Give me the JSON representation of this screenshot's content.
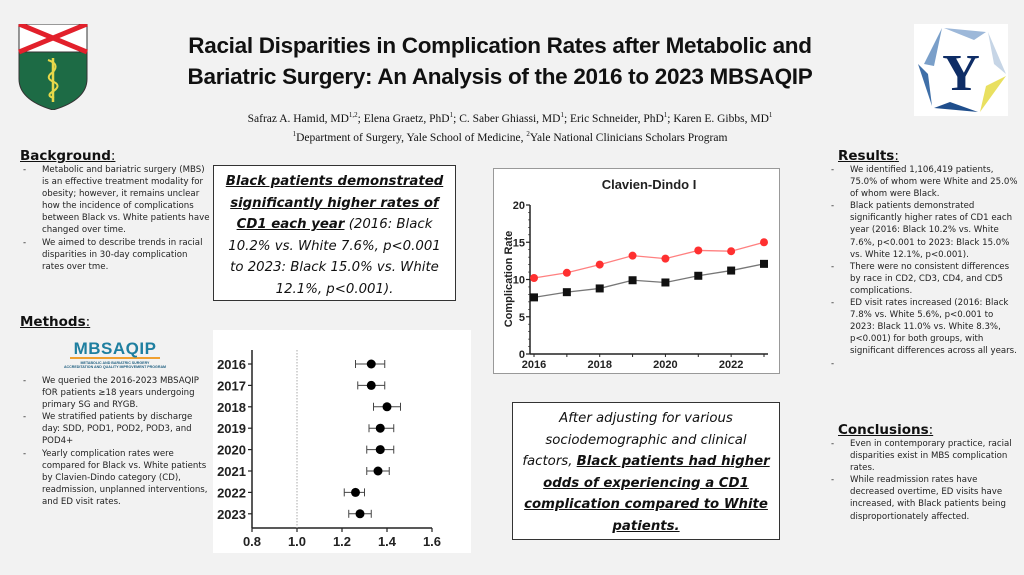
{
  "header": {
    "title_line1": "Racial Disparities in Complication Rates after Metabolic and",
    "title_line2": "Bariatric Surgery: An Analysis of the 2016 to 2023 MBSAQIP",
    "authors": [
      {
        "name": "Safraz A. Hamid, MD",
        "sup": "1,2",
        "sep": "; "
      },
      {
        "name": "Elena Graetz, PhD",
        "sup": "1",
        "sep": "; "
      },
      {
        "name": "C. Saber Ghiassi, MD",
        "sup": "1",
        "sep": "; "
      },
      {
        "name": "Eric Schneider, PhD",
        "sup": "1",
        "sep": "; "
      },
      {
        "name": "Karen E. Gibbs, MD",
        "sup": "1",
        "sep": ""
      }
    ],
    "affil1_sup": "1",
    "affil1": "Department of Surgery, Yale School of Medicine, ",
    "affil2_sup": "2",
    "affil2": "Yale National Clinicians Scholars Program",
    "left_logo": "yale-school-of-medicine-shield",
    "right_logo": "yale-national-clinician-scholars-y",
    "mbsaqip_logo_text": "MBSAQIP",
    "mbsaqip_logo_sub1": "METABOLIC AND BARIATRIC SURGERY",
    "mbsaqip_logo_sub2": "ACCREDITATION AND QUALITY IMPROVEMENT PROGRAM"
  },
  "background": {
    "heading": "Background",
    "items": [
      "Metabolic and bariatric surgery (MBS) is an effective treatment modality for obesity; however, it remains unclear how the incidence of complications between Black vs. White patients have changed over time.",
      "We aimed to describe trends in racial disparities in 30-day complication rates over tme."
    ]
  },
  "methods": {
    "heading": "Methods",
    "items": [
      "We queried the 2016-2023 MBSAQIP fOR patients ≥18 years undergoing primary SG and RYGB.",
      "We stratified patients by discharge day: SDD, POD1, POD2, POD3, and POD4+",
      "Yearly complication rates were compared for Black vs. White patients by Clavien-Dindo category (CD), readmission, unplanned interventions, and ED visit rates."
    ]
  },
  "results": {
    "heading": "Results",
    "items": [
      "We identified 1,106,419 patients, 75.0% of whom were White and 25.0% of whom were Black.",
      "Black patients demonstrated significantly higher rates of CD1 each year (2016: Black 10.2% vs. White 7.6%, p<0.001 to 2023: Black 15.0% vs. White 12.1%, p<0.001).",
      "There were no consistent differences by race in CD2, CD3, CD4, and CD5 complications.",
      "ED visit rates increased (2016: Black 7.8% vs. White 5.6%, p<0.001 to 2023: Black 11.0% vs. White 8.3%, p<0.001) for both groups, with significant differences across all years.",
      ""
    ]
  },
  "conclusions": {
    "heading": "Conclusions",
    "items": [
      "Even in contemporary practice, racial disparities exist in MBS complication rates.",
      "While readmission rates have decreased overtime, ED visits have increased, with Black patients being disproportionately affected."
    ]
  },
  "key_finding": {
    "bold": "Black patients demonstrated significantly higher rates of CD1 each year",
    "rest": " (2016: Black 10.2% vs. White 7.6%, p<0.001 to 2023: Black 15.0% vs. White 12.1%, p<0.001)."
  },
  "adjusted_finding": {
    "lead": "After adjusting for various sociodemographic and clinical factors, ",
    "bold": "Black patients had higher odds of experiencing a CD1 complication compared to White patients."
  },
  "chart_data": [
    {
      "type": "line",
      "title": "Clavien-Dindo I",
      "ylabel": "Complication Rate",
      "xlabel": "",
      "x": [
        2016,
        2017,
        2018,
        2019,
        2020,
        2021,
        2022,
        2023
      ],
      "xticks": [
        2016,
        2018,
        2020,
        2022
      ],
      "yticks": [
        0,
        5,
        10,
        15,
        20
      ],
      "ylim": [
        0,
        20
      ],
      "grid": false,
      "series": [
        {
          "color": "#ff3030",
          "marker": "circle",
          "values": [
            10.2,
            10.9,
            12.0,
            13.2,
            12.8,
            13.9,
            13.8,
            15.0
          ]
        },
        {
          "color": "#111111",
          "marker": "square",
          "values": [
            7.6,
            8.3,
            8.8,
            9.9,
            9.6,
            10.5,
            11.2,
            12.1
          ]
        }
      ]
    },
    {
      "type": "scatter",
      "subtype": "forest",
      "categories": [
        "2016",
        "2017",
        "2018",
        "2019",
        "2020",
        "2021",
        "2022",
        "2023"
      ],
      "values": [
        1.33,
        1.33,
        1.4,
        1.37,
        1.37,
        1.36,
        1.26,
        1.28
      ],
      "lower": [
        1.26,
        1.27,
        1.34,
        1.32,
        1.31,
        1.31,
        1.21,
        1.23
      ],
      "upper": [
        1.39,
        1.39,
        1.46,
        1.43,
        1.43,
        1.41,
        1.3,
        1.33
      ],
      "reference": 1.0,
      "xlim": [
        0.8,
        1.6
      ],
      "xticks": [
        "0.8",
        "1.0",
        "1.2",
        "1.4",
        "1.6"
      ],
      "grid": false
    }
  ]
}
